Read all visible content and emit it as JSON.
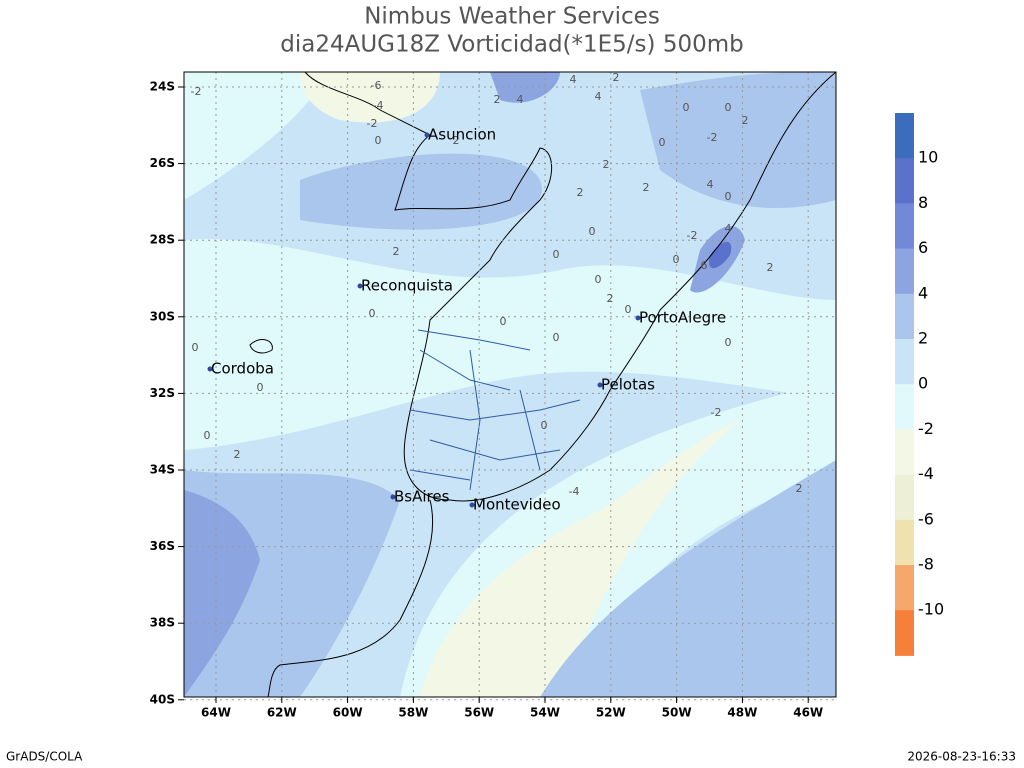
{
  "header": {
    "title": "Nimbus Weather Services",
    "subtitle": "dia24AUG18Z Vorticidad(*1E5/s) 500mb"
  },
  "lat_labels": [
    "24S",
    "26S",
    "28S",
    "30S",
    "32S",
    "34S",
    "36S",
    "38S",
    "40S"
  ],
  "lon_labels": [
    "64W",
    "62W",
    "60W",
    "58W",
    "56W",
    "54W",
    "52W",
    "50W",
    "48W",
    "46W"
  ],
  "cities": [
    "Asuncion",
    "Reconquista",
    "Cordoba",
    "PortoAlegre",
    "Pelotas",
    "BsAires",
    "Montevideo"
  ],
  "contour_labels": [
    "-2",
    "-6",
    "-4",
    "-2",
    "0",
    "2",
    "2",
    "4",
    "4",
    "2",
    "4",
    "0",
    "0",
    "2",
    "-2",
    "0",
    "2",
    "2",
    "4",
    "0",
    "2",
    "0",
    "-2",
    "4",
    "0",
    "0",
    "6",
    "2",
    "2",
    "0",
    "2",
    "0",
    "0",
    "0",
    "0",
    "0",
    "0",
    "0",
    "-2",
    "0",
    "0",
    "2",
    "-4",
    "2"
  ],
  "colorbar": {
    "colors": [
      "#3c6cbd",
      "#5a72cc",
      "#7189d6",
      "#8ca5e0",
      "#abc6ec",
      "#c9e4f6",
      "#e0f9fb",
      "#f3f8e6",
      "#eef0d6",
      "#f0e2b0",
      "#f6a86c",
      "#f67f39"
    ],
    "labels": [
      "10",
      "8",
      "6",
      "4",
      "2",
      "0",
      "-2",
      "-4",
      "-6",
      "-8",
      "-10"
    ]
  },
  "footer": {
    "left": "GrADS/COLA",
    "right": "2026-08-23-16:33"
  }
}
